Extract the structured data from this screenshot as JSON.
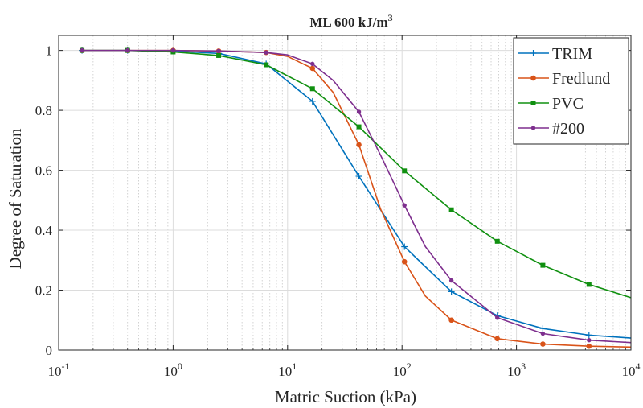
{
  "chart_data": {
    "type": "line",
    "title": "ML 600 kJ/m",
    "title_superscript": "3",
    "xlabel": "Matric Suction (kPa)",
    "ylabel": "Degree of Saturation",
    "xscale": "log",
    "xlim": [
      0.1,
      10000
    ],
    "ylim": [
      0,
      1.05
    ],
    "grid": "on",
    "legend_position": "top-right",
    "xtick_labels": [
      {
        "base": "10",
        "exp": "-1",
        "value": 0.1
      },
      {
        "base": "10",
        "exp": "0",
        "value": 1
      },
      {
        "base": "10",
        "exp": "1",
        "value": 10
      },
      {
        "base": "10",
        "exp": "2",
        "value": 100
      },
      {
        "base": "10",
        "exp": "3",
        "value": 1000
      },
      {
        "base": "10",
        "exp": "4",
        "value": 10000
      }
    ],
    "yticks": [
      0,
      0.2,
      0.4,
      0.6,
      0.8,
      1
    ],
    "ytick_labels": [
      "0",
      "0.2",
      "0.4",
      "0.6",
      "0.8",
      "1"
    ],
    "series": [
      {
        "name": "TRIM",
        "color": "#0072BD",
        "marker": "plus",
        "x": [
          0.16,
          0.4,
          1.0,
          2.5,
          6.5,
          16.5,
          42,
          105,
          270,
          680,
          1700,
          4300,
          10000
        ],
        "y": [
          1.0,
          1.0,
          0.998,
          0.99,
          0.955,
          0.83,
          0.58,
          0.345,
          0.195,
          0.115,
          0.072,
          0.05,
          0.04
        ],
        "markers_x": [
          0.16,
          0.4,
          1.0,
          2.5,
          6.5,
          16.5,
          42,
          105,
          270,
          680,
          1700,
          4300
        ],
        "markers_y": [
          1.0,
          1.0,
          0.998,
          0.99,
          0.955,
          0.83,
          0.58,
          0.345,
          0.195,
          0.115,
          0.072,
          0.05
        ]
      },
      {
        "name": "Fredlund",
        "color": "#D95319",
        "marker": "circle",
        "x": [
          0.16,
          0.4,
          1.0,
          2.5,
          6.5,
          10,
          16.5,
          25,
          42,
          65,
          105,
          160,
          270,
          680,
          1700,
          4300,
          10000
        ],
        "y": [
          1.0,
          1.0,
          1.0,
          0.998,
          0.993,
          0.98,
          0.94,
          0.86,
          0.685,
          0.47,
          0.295,
          0.18,
          0.1,
          0.038,
          0.02,
          0.013,
          0.01
        ],
        "markers_x": [
          0.16,
          0.4,
          1.0,
          2.5,
          6.5,
          16.5,
          42,
          105,
          270,
          680,
          1700,
          4300
        ],
        "markers_y": [
          1.0,
          1.0,
          1.0,
          0.998,
          0.993,
          0.94,
          0.685,
          0.295,
          0.1,
          0.038,
          0.02,
          0.013
        ]
      },
      {
        "name": "PVC",
        "color": "#109010",
        "marker": "square",
        "x": [
          0.16,
          0.4,
          1.0,
          2.5,
          6.5,
          16.5,
          42,
          105,
          270,
          680,
          1700,
          4300,
          10000
        ],
        "y": [
          1.0,
          1.0,
          0.995,
          0.983,
          0.952,
          0.872,
          0.745,
          0.598,
          0.468,
          0.363,
          0.283,
          0.219,
          0.175
        ],
        "markers_x": [
          0.16,
          0.4,
          1.0,
          2.5,
          6.5,
          16.5,
          42,
          105,
          270,
          680,
          1700,
          4300
        ],
        "markers_y": [
          1.0,
          1.0,
          0.995,
          0.983,
          0.952,
          0.872,
          0.745,
          0.598,
          0.468,
          0.363,
          0.283,
          0.219
        ]
      },
      {
        "name": "#200",
        "color": "#7E2F8E",
        "marker": "dot",
        "x": [
          0.16,
          0.4,
          1.0,
          2.5,
          6.5,
          10,
          16.5,
          25,
          42,
          65,
          105,
          160,
          270,
          680,
          1700,
          4300,
          10000
        ],
        "y": [
          1.0,
          1.0,
          1.0,
          0.998,
          0.993,
          0.985,
          0.955,
          0.9,
          0.795,
          0.65,
          0.483,
          0.345,
          0.232,
          0.108,
          0.055,
          0.033,
          0.025
        ],
        "markers_x": [
          0.16,
          0.4,
          1.0,
          2.5,
          6.5,
          16.5,
          42,
          105,
          270,
          680,
          1700,
          4300
        ],
        "markers_y": [
          1.0,
          1.0,
          1.0,
          0.998,
          0.993,
          0.955,
          0.795,
          0.483,
          0.232,
          0.108,
          0.055,
          0.033
        ]
      }
    ]
  }
}
